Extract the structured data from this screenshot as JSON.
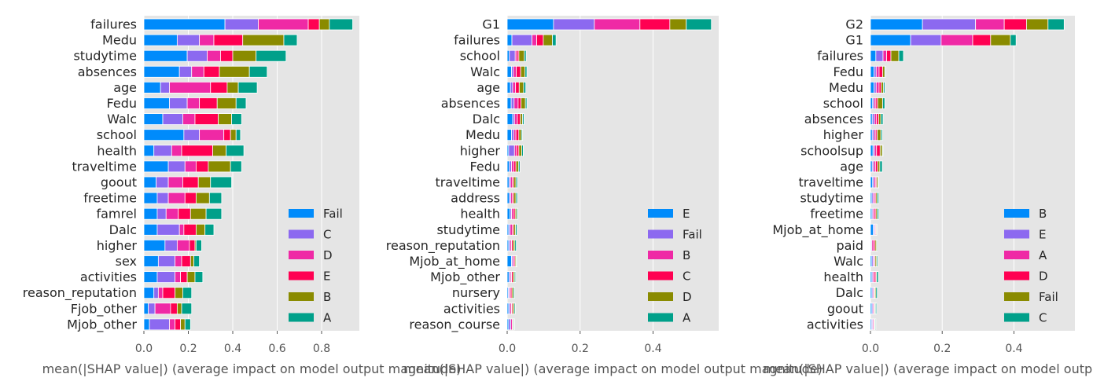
{
  "chart_data": [
    {
      "type": "bar",
      "orientation": "horizontal",
      "stacked": true,
      "xlabel": "mean(|SHAP value|) (average impact on model output magnitude)",
      "xlim": [
        0,
        0.97
      ],
      "xticks": [
        0.0,
        0.2,
        0.4,
        0.6,
        0.8
      ],
      "xtick_labels": [
        "0.0",
        "0.2",
        "0.4",
        "0.6",
        "0.8"
      ],
      "grid": true,
      "legend_position": "bottom-right",
      "categories": [
        "failures",
        "Medu",
        "studytime",
        "absences",
        "age",
        "Fedu",
        "Walc",
        "school",
        "health",
        "traveltime",
        "goout",
        "freetime",
        "famrel",
        "Dalc",
        "higher",
        "sex",
        "activities",
        "reason_reputation",
        "Fjob_other",
        "Mjob_other"
      ],
      "series": [
        {
          "name": "Fail",
          "color": "#008bfb",
          "values": [
            0.365,
            0.15,
            0.195,
            0.16,
            0.075,
            0.115,
            0.085,
            0.18,
            0.045,
            0.11,
            0.055,
            0.06,
            0.06,
            0.06,
            0.095,
            0.065,
            0.06,
            0.045,
            0.02,
            0.025
          ]
        },
        {
          "name": "C",
          "color": "#8c69f0",
          "values": [
            0.15,
            0.1,
            0.09,
            0.055,
            0.04,
            0.08,
            0.09,
            0.07,
            0.08,
            0.075,
            0.055,
            0.05,
            0.04,
            0.1,
            0.055,
            0.075,
            0.08,
            0.02,
            0.03,
            0.09
          ]
        },
        {
          "name": "D",
          "color": "#ef29a5",
          "values": [
            0.225,
            0.065,
            0.06,
            0.055,
            0.185,
            0.055,
            0.055,
            0.11,
            0.045,
            0.05,
            0.065,
            0.075,
            0.055,
            0.02,
            0.055,
            0.03,
            0.025,
            0.02,
            0.07,
            0.025
          ]
        },
        {
          "name": "E",
          "color": "#ff0052",
          "values": [
            0.05,
            0.13,
            0.055,
            0.07,
            0.075,
            0.08,
            0.105,
            0.03,
            0.14,
            0.055,
            0.07,
            0.05,
            0.055,
            0.055,
            0.025,
            0.04,
            0.03,
            0.055,
            0.03,
            0.025
          ]
        },
        {
          "name": "B",
          "color": "#8a8b00",
          "values": [
            0.045,
            0.185,
            0.105,
            0.135,
            0.05,
            0.085,
            0.06,
            0.025,
            0.06,
            0.1,
            0.055,
            0.06,
            0.07,
            0.04,
            0.005,
            0.015,
            0.035,
            0.035,
            0.02,
            0.02
          ]
        },
        {
          "name": "A",
          "color": "#00a08a",
          "values": [
            0.105,
            0.06,
            0.135,
            0.08,
            0.085,
            0.045,
            0.045,
            0.02,
            0.08,
            0.05,
            0.095,
            0.055,
            0.07,
            0.04,
            0.025,
            0.025,
            0.035,
            0.04,
            0.045,
            0.025
          ]
        }
      ]
    },
    {
      "type": "bar",
      "orientation": "horizontal",
      "stacked": true,
      "xlabel": "mean(|SHAP value|) (average impact on model output magnitude)",
      "xlim": [
        0,
        0.58
      ],
      "xticks": [
        0.0,
        0.2,
        0.4
      ],
      "xtick_labels": [
        "0.0",
        "0.2",
        "0.4"
      ],
      "grid": true,
      "legend_position": "bottom-right",
      "categories": [
        "G1",
        "failures",
        "school",
        "Walc",
        "age",
        "absences",
        "Dalc",
        "Medu",
        "higher",
        "Fedu",
        "traveltime",
        "address",
        "health",
        "studytime",
        "reason_reputation",
        "Mjob_at_home",
        "Mjob_other",
        "nursery",
        "activities",
        "reason_course"
      ],
      "series": [
        {
          "name": "E",
          "color": "#008bfb",
          "values": [
            0.127,
            0.013,
            0.006,
            0.012,
            0.009,
            0.011,
            0.015,
            0.012,
            0.004,
            0.006,
            0.005,
            0.006,
            0.008,
            0.004,
            0.004,
            0.012,
            0.005,
            0.003,
            0.004,
            0.004
          ]
        },
        {
          "name": "Fail",
          "color": "#8c69f0",
          "values": [
            0.112,
            0.055,
            0.016,
            0.005,
            0.006,
            0.008,
            0.005,
            0.006,
            0.016,
            0.006,
            0.004,
            0.004,
            0.004,
            0.004,
            0.004,
            0.003,
            0.004,
            0.003,
            0.004,
            0.006
          ]
        },
        {
          "name": "B",
          "color": "#ef29a5",
          "values": [
            0.125,
            0.013,
            0.005,
            0.008,
            0.008,
            0.011,
            0.008,
            0.006,
            0.006,
            0.006,
            0.005,
            0.004,
            0.005,
            0.006,
            0.004,
            0.004,
            0.003,
            0.003,
            0.004,
            0.004
          ]
        },
        {
          "name": "C",
          "color": "#ff0052",
          "values": [
            0.082,
            0.018,
            0.005,
            0.012,
            0.01,
            0.008,
            0.008,
            0.008,
            0.006,
            0.006,
            0.004,
            0.004,
            0.005,
            0.004,
            0.004,
            0.003,
            0.004,
            0.004,
            0.003,
            0.002
          ]
        },
        {
          "name": "D",
          "color": "#8a8b00",
          "values": [
            0.045,
            0.025,
            0.015,
            0.012,
            0.012,
            0.012,
            0.006,
            0.007,
            0.008,
            0.007,
            0.006,
            0.006,
            0.004,
            0.005,
            0.005,
            0.003,
            0.004,
            0.004,
            0.004,
            0.002
          ]
        },
        {
          "name": "A",
          "color": "#00a08a",
          "values": [
            0.069,
            0.01,
            0.005,
            0.005,
            0.006,
            0.004,
            0.004,
            0.003,
            0.004,
            0.004,
            0.004,
            0.004,
            0.003,
            0.004,
            0.004,
            0.002,
            0.003,
            0.003,
            0.003,
            0.002
          ]
        }
      ]
    },
    {
      "type": "bar",
      "orientation": "horizontal",
      "stacked": true,
      "xlabel": "mean(|SHAP value|) (average impact on model output magnitude)",
      "xlim": [
        0,
        0.57
      ],
      "xticks": [
        0.0,
        0.2,
        0.4
      ],
      "xtick_labels": [
        "0.0",
        "0.2",
        "0.4"
      ],
      "grid": true,
      "legend_position": "bottom-right",
      "categories": [
        "G2",
        "G1",
        "failures",
        "Fedu",
        "Medu",
        "school",
        "absences",
        "higher",
        "schoolsup",
        "age",
        "traveltime",
        "studytime",
        "freetime",
        "Mjob_at_home",
        "paid",
        "Walc",
        "health",
        "Dalc",
        "goout",
        "activities"
      ],
      "series": [
        {
          "name": "B",
          "color": "#008bfb",
          "values": [
            0.145,
            0.112,
            0.015,
            0.01,
            0.01,
            0.006,
            0.005,
            0.005,
            0.007,
            0.005,
            0.006,
            0.004,
            0.004,
            0.008,
            0.002,
            0.004,
            0.004,
            0.004,
            0.004,
            0.003
          ]
        },
        {
          "name": "E",
          "color": "#8c69f0",
          "values": [
            0.148,
            0.085,
            0.02,
            0.006,
            0.006,
            0.004,
            0.006,
            0.005,
            0.004,
            0.004,
            0.004,
            0.004,
            0.003,
            0.003,
            0.002,
            0.004,
            0.003,
            0.003,
            0.003,
            0.003
          ]
        },
        {
          "name": "A",
          "color": "#ef29a5",
          "values": [
            0.08,
            0.088,
            0.01,
            0.008,
            0.008,
            0.005,
            0.006,
            0.005,
            0.006,
            0.005,
            0.004,
            0.004,
            0.004,
            0.002,
            0.005,
            0.003,
            0.004,
            0.003,
            0.003,
            0.003
          ]
        },
        {
          "name": "D",
          "color": "#ff0052",
          "values": [
            0.062,
            0.05,
            0.012,
            0.01,
            0.006,
            0.005,
            0.006,
            0.004,
            0.01,
            0.006,
            0.003,
            0.003,
            0.004,
            0.002,
            0.004,
            0.002,
            0.004,
            0.002,
            0.002,
            0.002
          ]
        },
        {
          "name": "Fail",
          "color": "#8a8b00",
          "values": [
            0.06,
            0.055,
            0.022,
            0.006,
            0.006,
            0.014,
            0.006,
            0.01,
            0.006,
            0.006,
            0.004,
            0.004,
            0.004,
            0.002,
            0.004,
            0.004,
            0.002,
            0.003,
            0.002,
            0.002
          ]
        },
        {
          "name": "C",
          "color": "#00a08a",
          "values": [
            0.045,
            0.016,
            0.013,
            0.002,
            0.004,
            0.006,
            0.006,
            0.004,
            0.002,
            0.007,
            0.002,
            0.004,
            0.004,
            0.001,
            0.002,
            0.003,
            0.005,
            0.004,
            0.003,
            0.002
          ]
        }
      ]
    }
  ]
}
